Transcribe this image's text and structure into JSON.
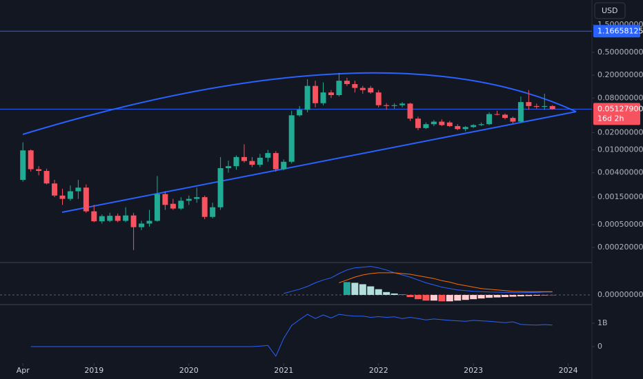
{
  "chart_data": [
    {
      "type": "candlestick",
      "currency": "USD",
      "log_scale": true,
      "up_color": "#22ab94",
      "down_color": "#f7525f",
      "line_color": "#2962ff",
      "xlim": [
        -2.9,
        72.0
      ],
      "xticks": [
        {
          "value": 0,
          "label": "Apr"
        },
        {
          "value": 9,
          "label": "2019"
        },
        {
          "value": 21,
          "label": "2020"
        },
        {
          "value": 33,
          "label": "2021"
        },
        {
          "value": 45,
          "label": "2022"
        },
        {
          "value": 57,
          "label": "2023"
        },
        {
          "value": 69,
          "label": "2024"
        }
      ],
      "ylim": [
        0.000112,
        4.08
      ],
      "yticks": [
        {
          "value": 1.5,
          "label": "1.50000000"
        },
        {
          "value": 0.5,
          "label": "0.50000000"
        },
        {
          "value": 0.2,
          "label": "0.20000000"
        },
        {
          "value": 0.08,
          "label": "0.08000000"
        },
        {
          "value": 0.02,
          "label": "0.02000000"
        },
        {
          "value": 0.01,
          "label": "0.01000000"
        },
        {
          "value": 0.004,
          "label": "0.00400000"
        },
        {
          "value": 0.0015,
          "label": "0.00150000"
        },
        {
          "value": 0.0005,
          "label": "0.00050000"
        },
        {
          "value": 0.0002,
          "label": "0.00020000"
        }
      ],
      "alert_level": 1.16658125,
      "last_price": {
        "value": 0.051279,
        "label": "0.05127900"
      },
      "countdown": "16d 2h",
      "candles": [
        [
          0.003,
          0.0135,
          0.0028,
          0.0098
        ],
        [
          0.0098,
          0.0102,
          0.0042,
          0.0046
        ],
        [
          0.0046,
          0.0052,
          0.0036,
          0.0043
        ],
        [
          0.0043,
          0.0047,
          0.0025,
          0.0026
        ],
        [
          0.0026,
          0.003,
          0.0015,
          0.0016
        ],
        [
          0.0016,
          0.0021,
          0.0011,
          0.0014
        ],
        [
          0.0014,
          0.0024,
          0.0013,
          0.0019
        ],
        [
          0.0019,
          0.003,
          0.0014,
          0.0022
        ],
        [
          0.0022,
          0.0025,
          0.0008,
          0.00085
        ],
        [
          0.00085,
          0.0011,
          0.00055,
          0.00057
        ],
        [
          0.00057,
          0.00075,
          0.00052,
          0.0007
        ],
        [
          0.00058,
          0.0008,
          0.00055,
          0.00071
        ],
        [
          0.00071,
          0.00078,
          0.00055,
          0.00058
        ],
        [
          0.00058,
          0.001,
          0.00055,
          0.00072
        ],
        [
          0.00072,
          0.0008,
          0.00018,
          0.00045
        ],
        [
          0.00045,
          0.00058,
          0.0004,
          0.00052
        ],
        [
          0.00052,
          0.0009,
          0.00046,
          0.00058
        ],
        [
          0.00058,
          0.0035,
          0.00056,
          0.0017
        ],
        [
          0.0017,
          0.0019,
          0.0009,
          0.0011
        ],
        [
          0.00115,
          0.0014,
          0.0009,
          0.00095
        ],
        [
          0.00095,
          0.0015,
          0.0009,
          0.0013
        ],
        [
          0.0013,
          0.0016,
          0.0011,
          0.0014
        ],
        [
          0.0014,
          0.0022,
          0.0012,
          0.0015
        ],
        [
          0.0015,
          0.0016,
          0.00062,
          0.00068
        ],
        [
          0.00068,
          0.0012,
          0.00064,
          0.001
        ],
        [
          0.001,
          0.0075,
          0.0009,
          0.0048
        ],
        [
          0.0048,
          0.0065,
          0.004,
          0.0052
        ],
        [
          0.0052,
          0.008,
          0.0045,
          0.0075
        ],
        [
          0.0075,
          0.0125,
          0.006,
          0.0064
        ],
        [
          0.0064,
          0.0075,
          0.005,
          0.0055
        ],
        [
          0.0055,
          0.0085,
          0.005,
          0.0073
        ],
        [
          0.0073,
          0.01,
          0.0062,
          0.0088
        ],
        [
          0.0088,
          0.0095,
          0.0042,
          0.0046
        ],
        [
          0.0046,
          0.0068,
          0.0044,
          0.0062
        ],
        [
          0.0062,
          0.048,
          0.0058,
          0.04
        ],
        [
          0.04,
          0.058,
          0.038,
          0.05
        ],
        [
          0.05,
          0.17,
          0.045,
          0.13
        ],
        [
          0.13,
          0.16,
          0.055,
          0.065
        ],
        [
          0.065,
          0.15,
          0.06,
          0.1
        ],
        [
          0.1,
          0.11,
          0.08,
          0.09
        ],
        [
          0.09,
          0.22,
          0.085,
          0.16
        ],
        [
          0.16,
          0.18,
          0.13,
          0.14
        ],
        [
          0.14,
          0.16,
          0.1,
          0.12
        ],
        [
          0.12,
          0.13,
          0.095,
          0.11
        ],
        [
          0.12,
          0.13,
          0.095,
          0.1
        ],
        [
          0.1,
          0.11,
          0.055,
          0.06
        ],
        [
          0.06,
          0.065,
          0.05,
          0.058
        ],
        [
          0.058,
          0.065,
          0.052,
          0.06
        ],
        [
          0.06,
          0.068,
          0.055,
          0.064
        ],
        [
          0.064,
          0.066,
          0.032,
          0.035
        ],
        [
          0.035,
          0.038,
          0.022,
          0.024
        ],
        [
          0.024,
          0.03,
          0.023,
          0.028
        ],
        [
          0.028,
          0.033,
          0.026,
          0.031
        ],
        [
          0.031,
          0.034,
          0.026,
          0.027
        ],
        [
          0.03,
          0.032,
          0.025,
          0.026
        ],
        [
          0.026,
          0.028,
          0.022,
          0.023
        ],
        [
          0.023,
          0.026,
          0.021,
          0.025
        ],
        [
          0.025,
          0.028,
          0.024,
          0.027
        ],
        [
          0.027,
          0.03,
          0.026,
          0.028
        ],
        [
          0.028,
          0.045,
          0.027,
          0.042
        ],
        [
          0.042,
          0.048,
          0.04,
          0.041
        ],
        [
          0.041,
          0.043,
          0.034,
          0.036
        ],
        [
          0.036,
          0.038,
          0.029,
          0.031
        ],
        [
          0.031,
          0.085,
          0.03,
          0.068
        ],
        [
          0.068,
          0.11,
          0.05,
          0.058
        ],
        [
          0.058,
          0.064,
          0.052,
          0.056
        ],
        [
          0.056,
          0.095,
          0.05,
          0.058
        ],
        [
          0.058,
          0.06,
          0.05,
          0.051279
        ]
      ]
    },
    {
      "type": "macd",
      "ylim": [
        -0.0126,
        0.0435
      ],
      "yticks": [
        {
          "value": 0,
          "label": "0.00000000"
        }
      ],
      "macd_color": "#2962ff",
      "signal_color": "#ff6d00",
      "histogram_colors": {
        "up_rising": "#26a69a",
        "up_falling": "#b2dfdb",
        "down_falling": "#ff5252",
        "down_rising": "#ffcdd2"
      },
      "macd": [
        null,
        null,
        null,
        null,
        null,
        null,
        null,
        null,
        null,
        null,
        null,
        null,
        null,
        null,
        null,
        null,
        null,
        null,
        null,
        null,
        null,
        null,
        null,
        null,
        null,
        null,
        null,
        null,
        null,
        null,
        null,
        null,
        null,
        0.002,
        0.005,
        0.008,
        0.012,
        0.017,
        0.021,
        0.024,
        0.03,
        0.035,
        0.038,
        0.039,
        0.04,
        0.038,
        0.035,
        0.031,
        0.028,
        0.025,
        0.021,
        0.017,
        0.014,
        0.011,
        0.009,
        0.007,
        0.006,
        0.005,
        0.0045,
        0.004,
        0.0038,
        0.0035,
        0.0033,
        0.0032,
        0.0033,
        0.0035,
        0.004,
        0.004
      ],
      "signal": [
        null,
        null,
        null,
        null,
        null,
        null,
        null,
        null,
        null,
        null,
        null,
        null,
        null,
        null,
        null,
        null,
        null,
        null,
        null,
        null,
        null,
        null,
        null,
        null,
        null,
        null,
        null,
        null,
        null,
        null,
        null,
        null,
        null,
        null,
        null,
        null,
        null,
        null,
        null,
        null,
        0.017,
        0.021,
        0.025,
        0.028,
        0.03,
        0.031,
        0.031,
        0.031,
        0.03,
        0.029,
        0.027,
        0.025,
        0.023,
        0.02,
        0.018,
        0.015,
        0.013,
        0.011,
        0.009,
        0.008,
        0.007,
        0.006,
        0.005,
        0.0048,
        0.0045,
        0.0045,
        0.0045,
        0.0045
      ],
      "histogram": [
        null,
        null,
        null,
        null,
        null,
        null,
        null,
        null,
        null,
        null,
        null,
        null,
        null,
        null,
        null,
        null,
        null,
        null,
        null,
        null,
        null,
        null,
        null,
        null,
        null,
        null,
        null,
        null,
        null,
        null,
        null,
        null,
        null,
        null,
        null,
        null,
        null,
        null,
        null,
        null,
        null,
        0.018,
        0.017,
        0.015,
        0.012,
        0.008,
        0.004,
        0.002,
        0.0005,
        -0.003,
        -0.006,
        -0.008,
        -0.008,
        -0.009,
        -0.009,
        -0.008,
        -0.007,
        -0.006,
        -0.005,
        -0.004,
        -0.0035,
        -0.003,
        -0.0025,
        -0.002,
        -0.0015,
        -0.001,
        -0.0006,
        -0.0003
      ]
    },
    {
      "type": "line",
      "color": "#2962ff",
      "ylim": [
        -647000000,
        1735000000
      ],
      "yticks": [
        {
          "value": 1000000000,
          "label": "1B"
        },
        0
      ],
      "values": [
        null,
        0,
        0,
        0,
        0,
        0,
        0,
        0,
        0,
        0,
        0,
        0,
        0,
        0,
        0,
        0,
        0,
        0,
        0,
        0,
        0,
        0,
        0,
        0,
        0,
        0,
        0,
        0,
        0,
        0,
        20000000,
        50000000,
        -410000000,
        350000000,
        900000000,
        1150000000,
        1380000000,
        1200000000,
        1350000000,
        1220000000,
        1380000000,
        1330000000,
        1300000000,
        1300000000,
        1250000000,
        1280000000,
        1250000000,
        1270000000,
        1200000000,
        1250000000,
        1200000000,
        1140000000,
        1180000000,
        1150000000,
        1120000000,
        1100000000,
        1080000000,
        1120000000,
        1100000000,
        1080000000,
        1050000000,
        1020000000,
        1060000000,
        950000000,
        930000000,
        920000000,
        940000000,
        920000000
      ]
    }
  ]
}
